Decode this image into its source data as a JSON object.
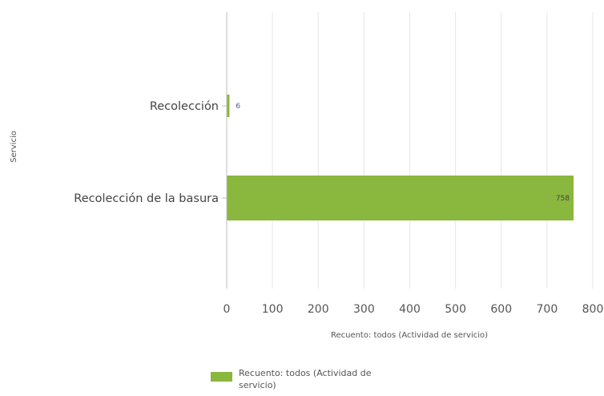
{
  "chart_data": {
    "type": "bar",
    "orientation": "horizontal",
    "ylabel": "Servicio",
    "xlabel": "Recuento: todos (Actividad de servicio)",
    "categories": [
      "Recolección",
      "Recolección de la basura"
    ],
    "series": [
      {
        "name": "Recuento: todos (Actividad de servicio)",
        "values": [
          6,
          758
        ],
        "color": "#8ab73e"
      }
    ],
    "data_labels": [
      "6",
      "758"
    ],
    "xlim": [
      0,
      800
    ],
    "xticks": [
      0,
      100,
      200,
      300,
      400,
      500,
      600,
      700,
      800
    ],
    "grid": "vertical",
    "legend": "bottom"
  }
}
